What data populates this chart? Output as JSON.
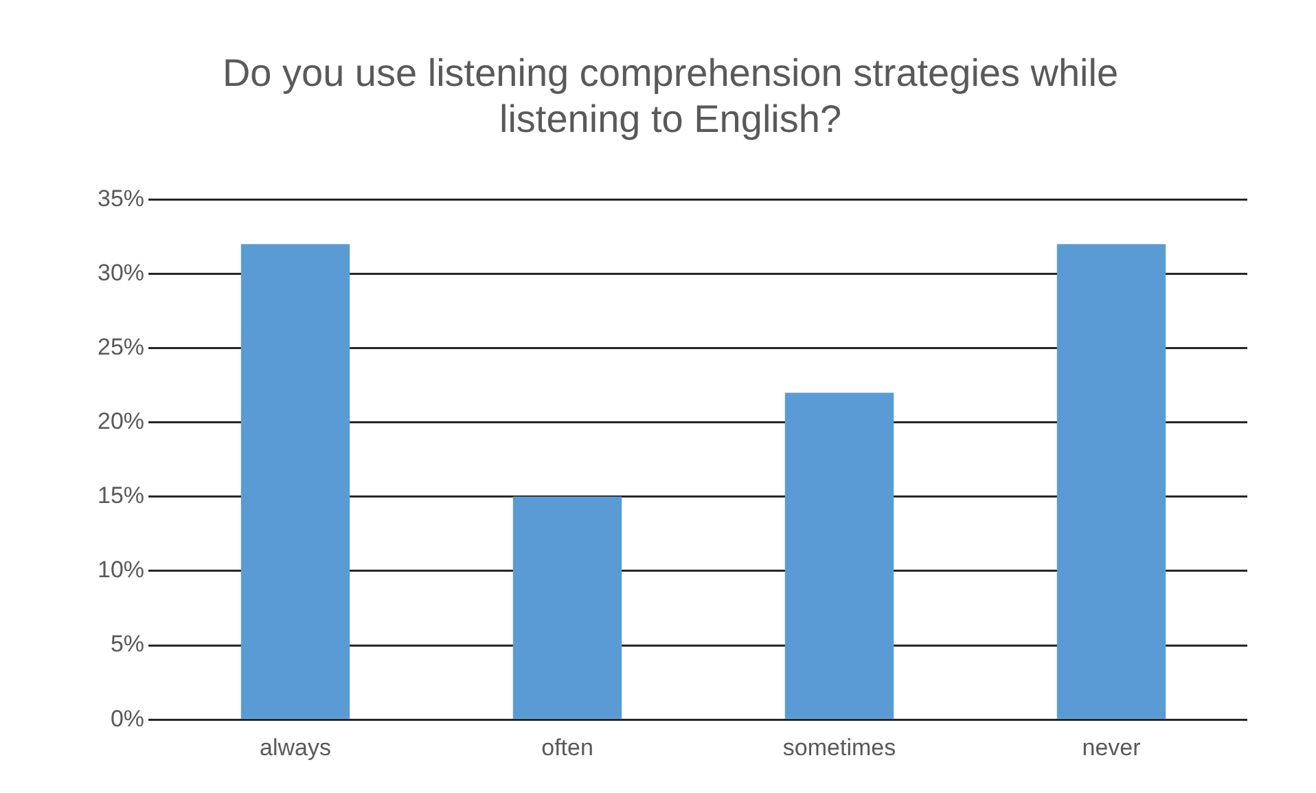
{
  "chart_data": {
    "type": "bar",
    "title": "Do you use listening comprehension strategies while listening to English?",
    "categories": [
      "always",
      "often",
      "sometimes",
      "never"
    ],
    "values": [
      32,
      15,
      22,
      32
    ],
    "color": "#5b9bd5",
    "ylim": [
      0,
      35
    ],
    "yticks": [
      {
        "value": 0,
        "label": "0%"
      },
      {
        "value": 5,
        "label": "5%"
      },
      {
        "value": 10,
        "label": "10%"
      },
      {
        "value": 15,
        "label": "15%"
      },
      {
        "value": 20,
        "label": "20%"
      },
      {
        "value": 25,
        "label": "25%"
      },
      {
        "value": 30,
        "label": "30%"
      },
      {
        "value": 35,
        "label": "35%"
      }
    ],
    "grid": "y",
    "legend": false
  }
}
